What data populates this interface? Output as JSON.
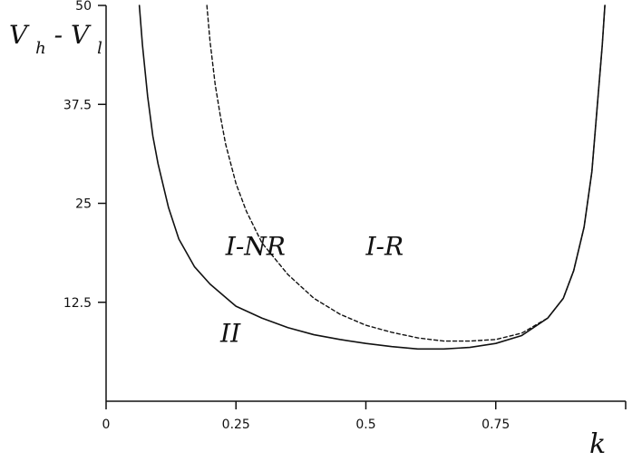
{
  "chart_data": {
    "type": "line",
    "xlabel": "k",
    "ylabel": {
      "main": "V",
      "sub1": "h",
      "sep": "-",
      "main2": "V",
      "sub2": "l"
    },
    "xlim": [
      0,
      1
    ],
    "ylim": [
      0,
      50
    ],
    "xticks": [
      0,
      0.25,
      0.5,
      0.75
    ],
    "xtick_labels": [
      "0",
      "0.25",
      "0.5",
      "0.75"
    ],
    "yticks": [
      12.5,
      25,
      37.5,
      50
    ],
    "ytick_labels": [
      "12.5",
      "25",
      "37.5",
      "50"
    ],
    "grid": false,
    "series": [
      {
        "style": "solid",
        "color": "#111111",
        "points": [
          [
            0.064,
            50
          ],
          [
            0.07,
            45
          ],
          [
            0.08,
            38.5
          ],
          [
            0.09,
            33.5
          ],
          [
            0.1,
            30
          ],
          [
            0.12,
            24.5
          ],
          [
            0.14,
            20.5
          ],
          [
            0.17,
            17
          ],
          [
            0.2,
            14.8
          ],
          [
            0.25,
            12
          ],
          [
            0.3,
            10.5
          ],
          [
            0.35,
            9.3
          ],
          [
            0.4,
            8.4
          ],
          [
            0.45,
            7.8
          ],
          [
            0.5,
            7.3
          ],
          [
            0.55,
            6.9
          ],
          [
            0.6,
            6.6
          ],
          [
            0.65,
            6.6
          ],
          [
            0.7,
            6.8
          ],
          [
            0.75,
            7.3
          ],
          [
            0.8,
            8.3
          ],
          [
            0.85,
            10.5
          ],
          [
            0.88,
            13
          ],
          [
            0.9,
            16.5
          ],
          [
            0.92,
            22
          ],
          [
            0.935,
            29
          ],
          [
            0.945,
            37
          ],
          [
            0.955,
            45
          ],
          [
            0.96,
            50
          ]
        ]
      },
      {
        "style": "dashed",
        "color": "#111111",
        "points": [
          [
            0.194,
            50
          ],
          [
            0.2,
            45.5
          ],
          [
            0.21,
            40
          ],
          [
            0.22,
            36
          ],
          [
            0.23,
            32.5
          ],
          [
            0.25,
            27.5
          ],
          [
            0.27,
            24
          ],
          [
            0.3,
            20
          ],
          [
            0.35,
            16
          ],
          [
            0.4,
            13
          ],
          [
            0.45,
            11
          ],
          [
            0.5,
            9.6
          ],
          [
            0.55,
            8.7
          ],
          [
            0.6,
            8
          ],
          [
            0.65,
            7.6
          ],
          [
            0.7,
            7.6
          ],
          [
            0.75,
            7.8
          ],
          [
            0.8,
            8.6
          ],
          [
            0.85,
            10.5
          ],
          [
            0.88,
            13
          ],
          [
            0.9,
            16.5
          ],
          [
            0.92,
            22
          ],
          [
            0.935,
            29
          ],
          [
            0.945,
            37
          ],
          [
            0.955,
            45
          ],
          [
            0.96,
            50
          ]
        ]
      }
    ],
    "annotations": [
      {
        "id": "ii",
        "text": "II",
        "x": 0.22,
        "y": 7.5
      },
      {
        "id": "inr",
        "text": "I-NR",
        "x": 0.23,
        "y": 18.5
      },
      {
        "id": "ir",
        "text": "I-R",
        "x": 0.5,
        "y": 18.5
      }
    ]
  }
}
